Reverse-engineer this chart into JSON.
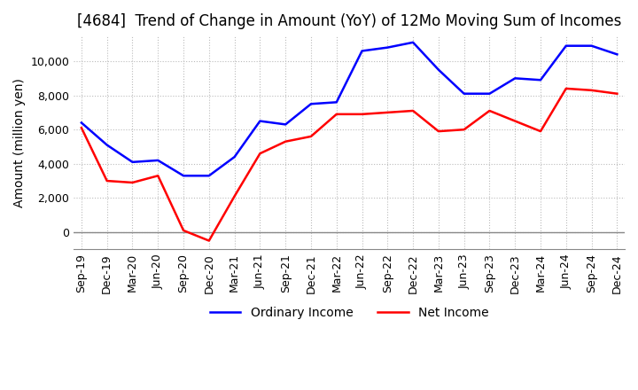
{
  "title": "[4684]  Trend of Change in Amount (YoY) of 12Mo Moving Sum of Incomes",
  "ylabel": "Amount (million yen)",
  "x_labels": [
    "Sep-19",
    "Dec-19",
    "Mar-20",
    "Jun-20",
    "Sep-20",
    "Dec-20",
    "Mar-21",
    "Jun-21",
    "Sep-21",
    "Dec-21",
    "Mar-22",
    "Jun-22",
    "Sep-22",
    "Dec-22",
    "Mar-23",
    "Jun-23",
    "Sep-23",
    "Dec-23",
    "Mar-24",
    "Jun-24",
    "Sep-24",
    "Dec-24"
  ],
  "ordinary_income": [
    6400,
    5100,
    4100,
    4200,
    3300,
    3300,
    4400,
    6500,
    6300,
    7500,
    7600,
    10600,
    10800,
    11100,
    9500,
    8100,
    8100,
    9000,
    8900,
    10900,
    10900,
    10400
  ],
  "net_income": [
    6100,
    3000,
    2900,
    3300,
    100,
    -500,
    2100,
    4600,
    5300,
    5600,
    6900,
    6900,
    7000,
    7100,
    5900,
    6000,
    7100,
    6500,
    5900,
    8400,
    8300,
    8100
  ],
  "ordinary_color": "#0000ff",
  "net_color": "#ff0000",
  "ylim_min": -1000,
  "ylim_max": 11500,
  "yticks": [
    0,
    2000,
    4000,
    6000,
    8000,
    10000
  ],
  "legend_labels": [
    "Ordinary Income",
    "Net Income"
  ],
  "background_color": "#ffffff",
  "grid_color": "#bbbbbb",
  "title_fontsize": 12,
  "axis_fontsize": 10,
  "tick_fontsize": 9,
  "linewidth": 1.8
}
